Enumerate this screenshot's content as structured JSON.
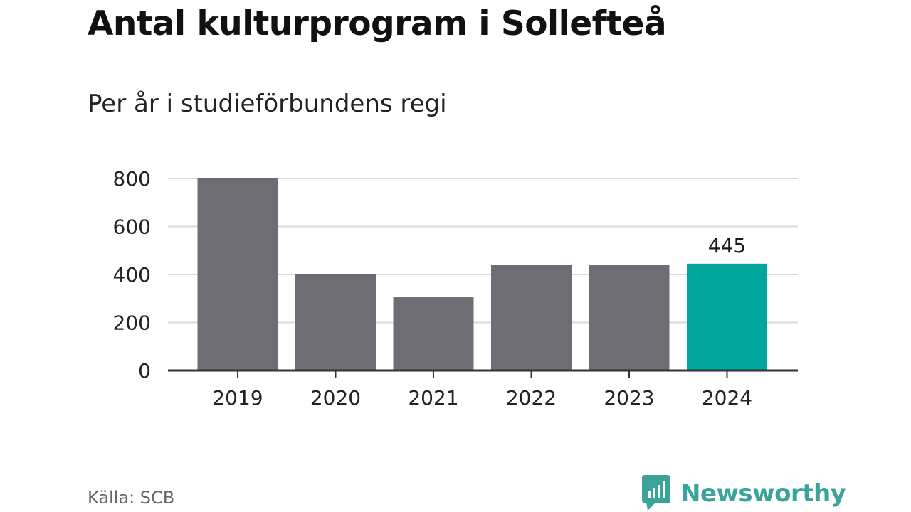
{
  "header": {
    "title": "Antal kulturprogram i Sollefteå",
    "subtitle": "Per år i studieförbundens regi"
  },
  "footer": {
    "source": "Källa: SCB",
    "brand": "Newsworthy"
  },
  "colors": {
    "bar": "#6e6d74",
    "highlight": "#00a59c",
    "grid": "#d9d9d9",
    "axis": "#333333",
    "brand": "#3aa39a"
  },
  "chart_data": {
    "type": "bar",
    "categories": [
      "2019",
      "2020",
      "2021",
      "2022",
      "2023",
      "2024"
    ],
    "values": [
      800,
      400,
      305,
      440,
      440,
      445
    ],
    "highlight_index": 5,
    "data_labels": [
      {
        "index": 5,
        "text": "445"
      }
    ],
    "ylim": [
      0,
      800
    ],
    "yticks": [
      0,
      200,
      400,
      600,
      800
    ],
    "grid": true,
    "legend": "none"
  }
}
